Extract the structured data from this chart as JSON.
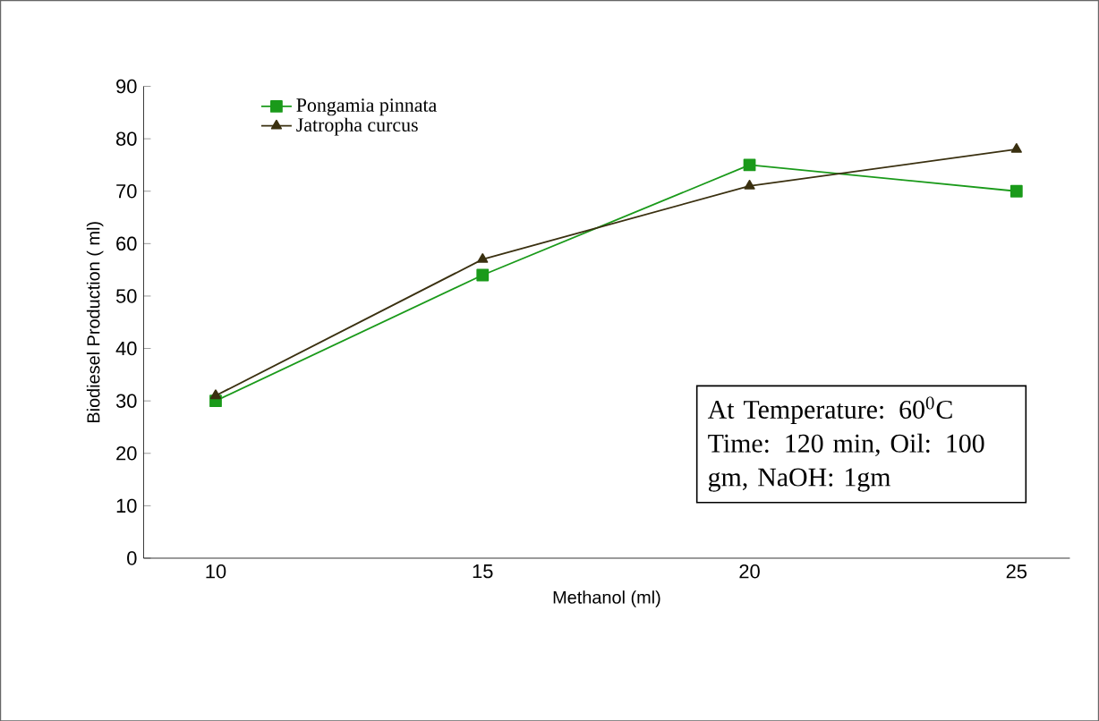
{
  "chart_data": {
    "type": "line",
    "xlabel": "Methanol (ml)",
    "ylabel": "Biodiesel Production ( ml)",
    "categories": [
      "10",
      "15",
      "20",
      "25"
    ],
    "series": [
      {
        "name": "Pongamia pinnata",
        "color": "#1a9a1a",
        "marker": "square",
        "values": [
          30,
          54,
          75,
          70
        ]
      },
      {
        "name": "Jatropha curcus",
        "color": "#3a3010",
        "marker": "triangle",
        "values": [
          31,
          57,
          71,
          78
        ]
      }
    ],
    "ylim": [
      0,
      90
    ],
    "yticks": [
      0,
      10,
      20,
      30,
      40,
      50,
      60,
      70,
      80,
      90
    ],
    "grid": false,
    "legend": "top left",
    "annotations": [
      "At Temperature: 60$^{0}$C Time: 120 min, Oil: 100 gm, NaOH: 1gm"
    ]
  }
}
